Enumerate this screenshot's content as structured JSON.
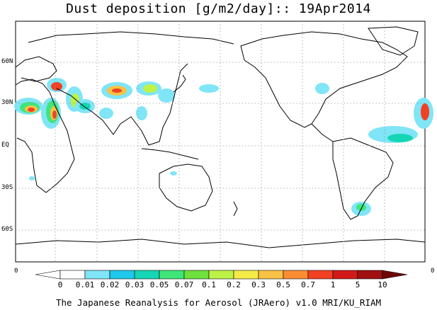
{
  "title": "Dust deposition [g/m2/day]:: 19Apr2014",
  "map": {
    "projection": "cylindrical-equidistant",
    "center_longitude": 180,
    "lat_ticks": [
      "60N",
      "30N",
      "EQ",
      "30S",
      "60S"
    ],
    "lon_tick_left": "0",
    "lon_tick_right": "0",
    "land_color": "#ffffff",
    "coastline_color": "#000000",
    "grid": true
  },
  "colorbar": {
    "labels": [
      "0",
      "0.01",
      "0.02",
      "0.03",
      "0.05",
      "0.07",
      "0.1",
      "0.2",
      "0.3",
      "0.5",
      "0.7",
      "1",
      "5",
      "10"
    ],
    "colors": [
      "#ffffff",
      "#ffffff",
      "#7fe5f7",
      "#1ec8ea",
      "#14d6b4",
      "#3ee67a",
      "#6ee13c",
      "#bdf246",
      "#f5eb46",
      "#f8c246",
      "#fb8c32",
      "#f24123",
      "#d21919",
      "#a01010",
      "#6e0808"
    ]
  },
  "credit": "The Japanese Reanalysis for Aerosol (JRAero) v1.0 MRI/KU_RIAM"
}
